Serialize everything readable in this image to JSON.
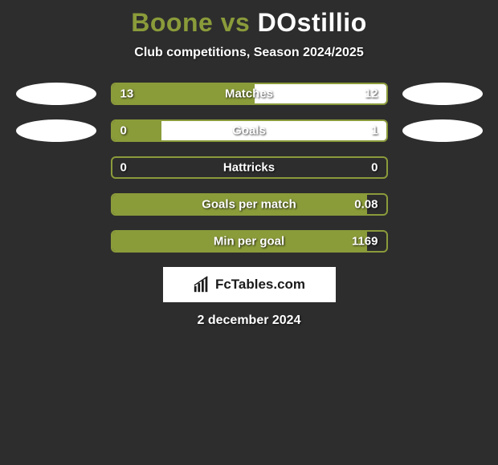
{
  "title": {
    "player1": "Boone",
    "vs": "vs",
    "player2": "DOstillio",
    "player1_color": "#8a9b3a",
    "player2_color": "#ffffff"
  },
  "subtitle": "Club competitions, Season 2024/2025",
  "background_color": "#2d2d2d",
  "accent_color": "#8a9b3a",
  "bar_border_color": "#8a9b3a",
  "stats": [
    {
      "label": "Matches",
      "left_value": "13",
      "right_value": "12",
      "left_pct": 52,
      "right_pct": 48,
      "left_pill": true,
      "right_pill": true
    },
    {
      "label": "Goals",
      "left_value": "0",
      "right_value": "1",
      "left_pct": 18,
      "right_pct": 82,
      "left_pill": true,
      "right_pill": true
    },
    {
      "label": "Hattricks",
      "left_value": "0",
      "right_value": "0",
      "left_pct": 0,
      "right_pct": 0,
      "left_pill": false,
      "right_pill": false
    },
    {
      "label": "Goals per match",
      "left_value": "",
      "right_value": "0.08",
      "left_pct": 93,
      "right_pct": 0,
      "left_pill": false,
      "right_pill": false
    },
    {
      "label": "Min per goal",
      "left_value": "",
      "right_value": "1169",
      "left_pct": 93,
      "right_pct": 0,
      "left_pill": false,
      "right_pill": false
    }
  ],
  "logo_text": "FcTables.com",
  "date": "2 december 2024"
}
